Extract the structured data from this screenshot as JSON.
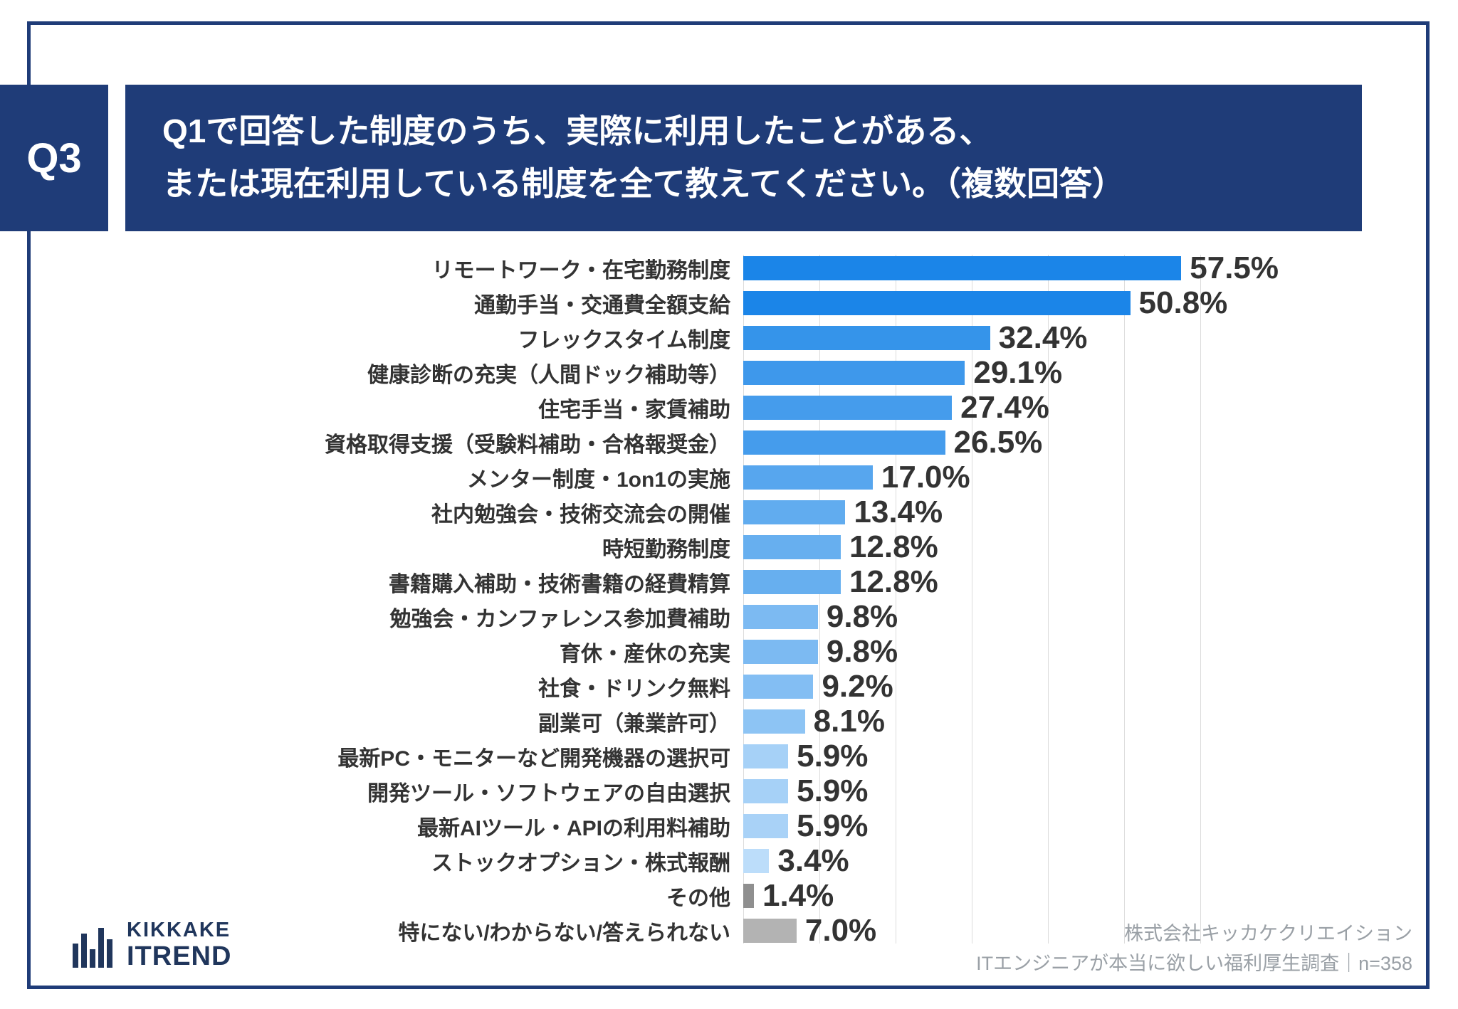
{
  "colors": {
    "brand_navy": "#1F3C78",
    "text_dark": "#333333",
    "gridline": "#dcdcdc",
    "footer_gray": "#9aa0a6",
    "other_gray": "#8F8F8F",
    "none_gray": "#B3B3B3"
  },
  "header": {
    "q_label": "Q3",
    "title_lines": [
      "Q1で回答した制度のうち、実際に利用したことがある、",
      "または現在利用している制度を全て教えてください。（複数回答）"
    ]
  },
  "chart_data": {
    "type": "bar",
    "orientation": "horizontal",
    "title": "",
    "xlabel": "",
    "ylabel": "",
    "unit": "%",
    "xlim": [
      0,
      60
    ],
    "gridline_step": 10,
    "legend": false,
    "categories": [
      "リモートワーク・在宅勤務制度",
      "通勤手当・交通費全額支給",
      "フレックスタイム制度",
      "健康診断の充実（人間ドック補助等）",
      "住宅手当・家賃補助",
      "資格取得支援（受験料補助・合格報奨金）",
      "メンター制度・1on1の実施",
      "社内勉強会・技術交流会の開催",
      "時短勤務制度",
      "書籍購入補助・技術書籍の経費精算",
      "勉強会・カンファレンス参加費補助",
      "育休・産休の充実",
      "社食・ドリンク無料",
      "副業可（兼業許可）",
      "最新PC・モニターなど開発機器の選択可",
      "開発ツール・ソフトウェアの自由選択",
      "最新AIツール・APIの利用料補助",
      "ストックオプション・株式報酬",
      "その他",
      "特にない/わからない/答えられない"
    ],
    "values": [
      57.5,
      50.8,
      32.4,
      29.1,
      27.4,
      26.5,
      17.0,
      13.4,
      12.8,
      12.8,
      9.8,
      9.8,
      9.2,
      8.1,
      5.9,
      5.9,
      5.9,
      3.4,
      1.4,
      7.0
    ],
    "value_labels": [
      "57.5%",
      "50.8%",
      "32.4%",
      "29.1%",
      "27.4%",
      "26.5%",
      "17.0%",
      "13.4%",
      "12.8%",
      "12.8%",
      "9.8%",
      "9.8%",
      "9.2%",
      "8.1%",
      "5.9%",
      "5.9%",
      "5.9%",
      "3.4%",
      "1.4%",
      "7.0%"
    ],
    "bar_colors": [
      "#1B85E8",
      "#1B85E8",
      "#3594EA",
      "#3E98EB",
      "#459CEC",
      "#459CEC",
      "#57A6EE",
      "#61ACEF",
      "#67AFEF",
      "#67AFEF",
      "#7CBAF2",
      "#7CBAF2",
      "#83BEF3",
      "#8DC4F4",
      "#A6D1F7",
      "#A6D1F7",
      "#A9D2F7",
      "#BCDDFA",
      "#8F8F8F",
      "#B3B3B3"
    ]
  },
  "footer": {
    "company": "株式会社キッカケクリエイション",
    "survey": "ITエンジニアが本当に欲しい福利厚生調査｜n=358"
  },
  "logo": {
    "top": "KIKKAKE",
    "bottom": "ITREND"
  }
}
